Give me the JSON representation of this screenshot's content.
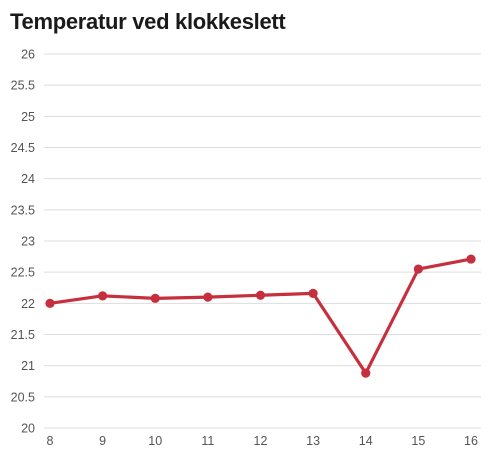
{
  "chart_data": {
    "type": "line",
    "title": "Temperatur ved klokkeslett",
    "xlabel": "",
    "ylabel": "",
    "x": [
      8,
      9,
      10,
      11,
      12,
      13,
      14,
      15,
      16
    ],
    "series": [
      {
        "values": [
          22.0,
          22.12,
          22.08,
          22.1,
          22.13,
          22.16,
          20.88,
          22.55,
          22.71
        ],
        "color": "#c62f3e"
      }
    ],
    "xticks": [
      "8",
      "9",
      "10",
      "11",
      "12",
      "13",
      "14",
      "15",
      "16"
    ],
    "yticks": [
      "20",
      "20.5",
      "21",
      "21.5",
      "22",
      "22.5",
      "23",
      "23.5",
      "24",
      "24.5",
      "25",
      "25.5",
      "26"
    ],
    "xlim": [
      8,
      16
    ],
    "ylim": [
      20,
      26
    ],
    "grid": true,
    "gridColor": "#dddddd",
    "legend": "none"
  }
}
